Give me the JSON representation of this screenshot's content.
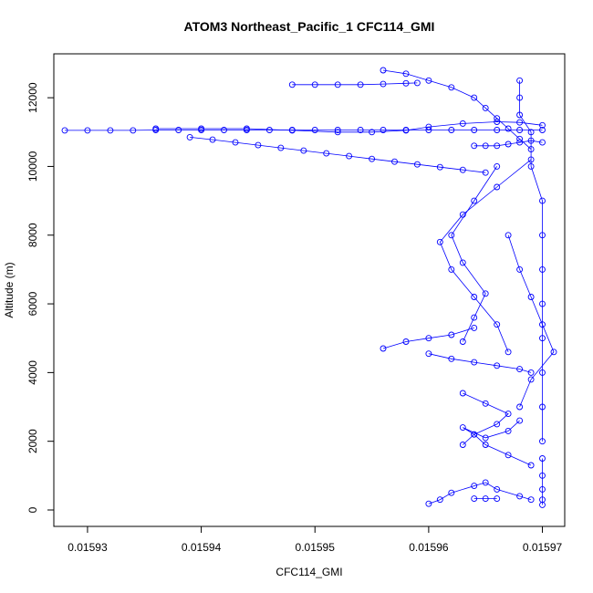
{
  "chart_data": {
    "type": "scatter",
    "title": "ATOM3 Northeast_Pacific_1 CFC114_GMI",
    "xlabel": "CFC114_GMI",
    "ylabel": "Altitude (m)",
    "xlim": [
      0.015928,
      0.015971
    ],
    "ylim": [
      0,
      12800
    ],
    "x_ticks": [
      0.01593,
      0.01594,
      0.01595,
      0.01596,
      0.01597
    ],
    "x_tick_labels": [
      "0.01593",
      "0.01594",
      "0.01595",
      "0.01596",
      "0.01597"
    ],
    "y_ticks": [
      0,
      2000,
      4000,
      6000,
      8000,
      10000,
      12000
    ],
    "y_tick_labels": [
      "0",
      "2000",
      "4000",
      "6000",
      "8000",
      "10000",
      "12000"
    ],
    "grid": false,
    "marker": "open-circle",
    "color": "#0000ff",
    "series": [
      {
        "x": [
          0.015928,
          0.01593,
          0.015932,
          0.015934,
          0.015936,
          0.015938,
          0.01594,
          0.015942,
          0.015944,
          0.015946,
          0.015948,
          0.01595,
          0.015952,
          0.015954,
          0.015956,
          0.015958,
          0.01596,
          0.015962,
          0.015964,
          0.015966,
          0.015968,
          0.01597
        ],
        "y": [
          11050,
          11050,
          11050,
          11050,
          11060,
          11060,
          11060,
          11060,
          11060,
          11060,
          11060,
          11060,
          11060,
          11060,
          11060,
          11060,
          11060,
          11060,
          11060,
          11060,
          11060,
          11060
        ]
      },
      {
        "x": [
          0.015936,
          0.01594,
          0.015944,
          0.015948,
          0.015952,
          0.015955,
          0.015958,
          0.01596,
          0.015963,
          0.015966,
          0.015968,
          0.01597
        ],
        "y": [
          11100,
          11100,
          11100,
          11050,
          11000,
          11000,
          11050,
          11150,
          11250,
          11300,
          11280,
          11200
        ]
      },
      {
        "x": [
          0.015939,
          0.015941,
          0.015943,
          0.015945,
          0.015947,
          0.015949,
          0.015951,
          0.015953,
          0.015955,
          0.015957,
          0.015959,
          0.015961,
          0.015963,
          0.015965
        ],
        "y": [
          10850,
          10780,
          10700,
          10620,
          10540,
          10460,
          10380,
          10300,
          10220,
          10140,
          10060,
          9980,
          9900,
          9820
        ]
      },
      {
        "x": [
          0.015948,
          0.01595,
          0.015952,
          0.015954,
          0.015956,
          0.015958,
          0.015959
        ],
        "y": [
          12380,
          12380,
          12380,
          12380,
          12400,
          12420,
          12430
        ]
      },
      {
        "x": [
          0.015956,
          0.015958,
          0.01596,
          0.015962,
          0.015964,
          0.015965,
          0.015966,
          0.015967,
          0.015968,
          0.015969
        ],
        "y": [
          12800,
          12700,
          12500,
          12300,
          12000,
          11700,
          11400,
          11100,
          10800,
          10500
        ]
      },
      {
        "x": [
          0.015964,
          0.015965,
          0.015966,
          0.015967,
          0.015968,
          0.015969,
          0.01597
        ],
        "y": [
          10600,
          10600,
          10600,
          10650,
          10700,
          10750,
          10700
        ]
      },
      {
        "x": [
          0.015968,
          0.015968,
          0.015968,
          0.015969,
          0.015969,
          0.01597,
          0.01597,
          0.01597,
          0.01597,
          0.01597,
          0.01597,
          0.01597,
          0.01597
        ],
        "y": [
          12500,
          12000,
          11500,
          11000,
          10000,
          9000,
          8000,
          7000,
          6000,
          5000,
          4000,
          3000,
          2000
        ]
      },
      {
        "x": [
          0.01597,
          0.01597,
          0.01597,
          0.01597,
          0.01597
        ],
        "y": [
          1500,
          1000,
          600,
          300,
          150
        ]
      },
      {
        "x": [
          0.015969,
          0.015966,
          0.015963,
          0.015961,
          0.015962,
          0.015964,
          0.015966,
          0.015967
        ],
        "y": [
          10200,
          9400,
          8600,
          7800,
          7000,
          6200,
          5400,
          4600
        ]
      },
      {
        "x": [
          0.015966,
          0.015964,
          0.015962,
          0.015963,
          0.015965,
          0.015964,
          0.015963
        ],
        "y": [
          10000,
          9000,
          8000,
          7200,
          6300,
          5600,
          4900
        ]
      },
      {
        "x": [
          0.01596,
          0.015962,
          0.015964,
          0.015966,
          0.015968,
          0.015969
        ],
        "y": [
          4550,
          4400,
          4300,
          4200,
          4100,
          4000
        ]
      },
      {
        "x": [
          0.015956,
          0.015958,
          0.01596,
          0.015962,
          0.015964
        ],
        "y": [
          4700,
          4900,
          5000,
          5100,
          5300
        ]
      },
      {
        "x": [
          0.015963,
          0.015965,
          0.015967,
          0.015966,
          0.015964,
          0.015965,
          0.015967,
          0.015969
        ],
        "y": [
          3400,
          3100,
          2800,
          2500,
          2200,
          1900,
          1600,
          1300
        ]
      },
      {
        "x": [
          0.01596,
          0.015961,
          0.015962,
          0.015964,
          0.015965,
          0.015966,
          0.015968,
          0.015969
        ],
        "y": [
          180,
          300,
          500,
          700,
          800,
          600,
          400,
          300
        ]
      },
      {
        "x": [
          0.015964,
          0.015965,
          0.015966
        ],
        "y": [
          330,
          330,
          330
        ]
      },
      {
        "x": [
          0.015963,
          0.015964,
          0.015963,
          0.015965,
          0.015967,
          0.015968
        ],
        "y": [
          1900,
          2200,
          2400,
          2100,
          2300,
          2600
        ]
      },
      {
        "x": [
          0.015967,
          0.015968,
          0.015969,
          0.01597,
          0.015971,
          0.015969,
          0.015968
        ],
        "y": [
          8000,
          7000,
          6200,
          5400,
          4600,
          3800,
          3000
        ]
      }
    ]
  }
}
